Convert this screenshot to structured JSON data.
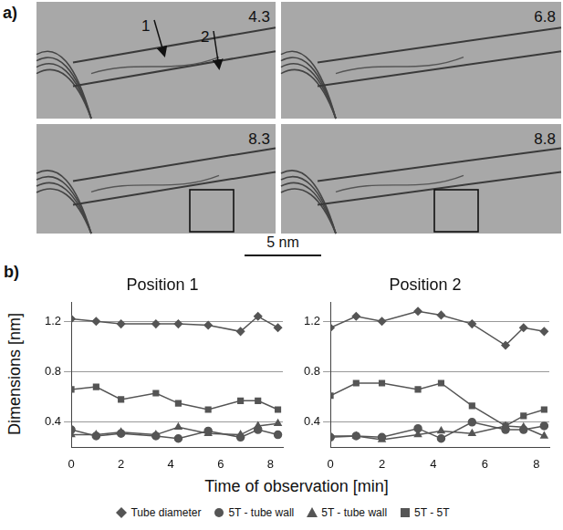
{
  "panel_a": {
    "letter": "a)",
    "frames": [
      {
        "time": "4.3",
        "markers": [
          "1",
          "2"
        ]
      },
      {
        "time": "6.8"
      },
      {
        "time": "8.3",
        "box": true
      },
      {
        "time": "8.8",
        "box": true
      }
    ],
    "scale_bar": "5 nm"
  },
  "panel_b": {
    "letter": "b)",
    "y_label": "Dimensions [nm]",
    "x_label": "Time of observation [min]",
    "legend": "bottom"
  },
  "chart_data": [
    {
      "type": "line",
      "title": "Position 1",
      "x": [
        0,
        1.0,
        2.0,
        3.4,
        4.3,
        5.5,
        6.8,
        7.5,
        8.3
      ],
      "series": [
        {
          "name": "Tube diameter",
          "color": "#555555",
          "marker": "diamond",
          "line_style": "solid",
          "values": [
            1.22,
            1.2,
            1.18,
            1.18,
            1.18,
            1.17,
            1.12,
            1.24,
            1.15
          ]
        },
        {
          "name": "5T - tube wall",
          "color": "#555555",
          "marker": "circle",
          "line_style": "solid",
          "values": [
            0.34,
            0.29,
            0.31,
            0.29,
            0.27,
            0.33,
            0.28,
            0.34,
            0.3
          ]
        },
        {
          "name": "5T - tube wall",
          "color": "#555555",
          "marker": "triangle",
          "line_style": "solid",
          "values": [
            0.3,
            0.3,
            0.32,
            0.3,
            0.36,
            0.31,
            0.3,
            0.37,
            0.39
          ]
        },
        {
          "name": "5T - 5T",
          "color": "#555555",
          "marker": "square",
          "line_style": "solid",
          "values": [
            0.66,
            0.68,
            0.58,
            0.63,
            0.55,
            0.5,
            0.57,
            0.57,
            0.5
          ]
        }
      ],
      "xlim": [
        0,
        8.5
      ],
      "xticks": [
        0,
        2,
        4,
        6,
        8
      ],
      "ylim": [
        0.2,
        1.35
      ],
      "yticks": [
        0.4,
        0.8,
        1.2
      ],
      "grid": "y"
    },
    {
      "type": "line",
      "title": "Position 2",
      "x": [
        0,
        1.0,
        2.0,
        3.4,
        4.3,
        5.5,
        6.8,
        7.5,
        8.3
      ],
      "series": [
        {
          "name": "Tube diameter",
          "color": "#555555",
          "marker": "diamond",
          "line_style": "solid",
          "values": [
            1.15,
            1.24,
            1.2,
            1.28,
            1.25,
            1.18,
            1.01,
            1.15,
            1.12
          ]
        },
        {
          "name": "5T - tube wall",
          "color": "#555555",
          "marker": "circle",
          "line_style": "solid",
          "values": [
            0.28,
            0.29,
            0.28,
            0.35,
            0.27,
            0.4,
            0.34,
            0.34,
            0.37
          ]
        },
        {
          "name": "5T - tube wall",
          "color": "#555555",
          "marker": "triangle",
          "line_style": "solid",
          "values": [
            0.29,
            0.29,
            0.26,
            0.3,
            0.33,
            0.31,
            0.37,
            0.36,
            0.29
          ]
        },
        {
          "name": "5T - 5T",
          "color": "#555555",
          "marker": "square",
          "line_style": "solid",
          "values": [
            0.61,
            0.71,
            0.71,
            0.66,
            0.71,
            0.53,
            0.37,
            0.45,
            0.5
          ]
        }
      ],
      "xlim": [
        0,
        8.5
      ],
      "xticks": [
        0,
        2,
        4,
        6,
        8
      ],
      "ylim": [
        0.2,
        1.35
      ],
      "yticks": [
        0.4,
        0.8,
        1.2
      ],
      "grid": "y"
    }
  ]
}
